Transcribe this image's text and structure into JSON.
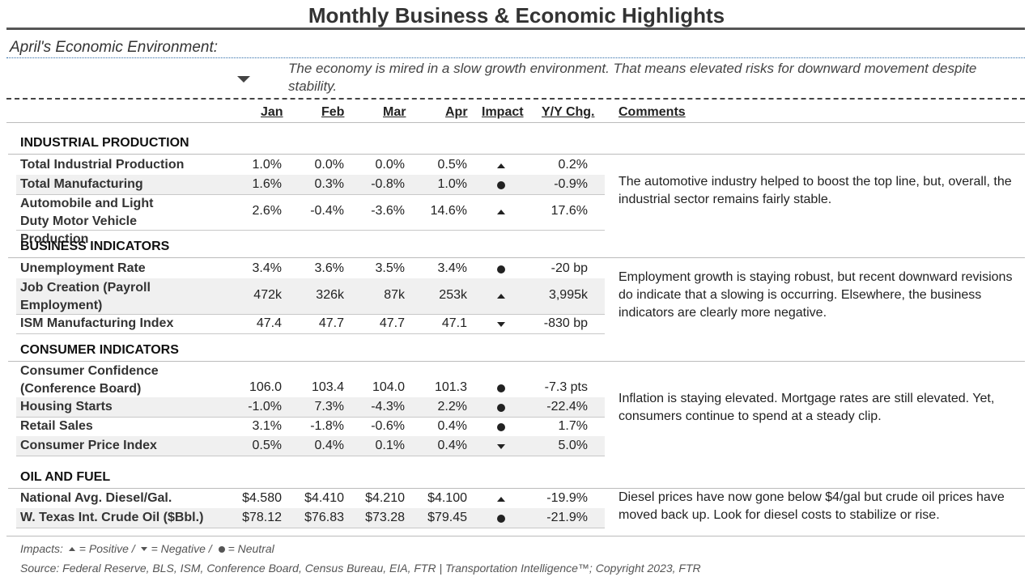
{
  "title": "Monthly Business & Economic Highlights",
  "subtitle": "April's Economic Environment:",
  "summary": {
    "icon": "down-arrow-icon",
    "text": "The economy is mired in a slow growth environment. That means elevated risks for downward movement despite stability."
  },
  "columns": {
    "jan": "Jan",
    "feb": "Feb",
    "mar": "Mar",
    "apr": "Apr",
    "impact": "Impact",
    "yy": "Y/Y Chg.",
    "comments": "Comments"
  },
  "sections": [
    {
      "title": "INDUSTRIAL PRODUCTION",
      "rows": [
        {
          "label": "Total Industrial Production",
          "jan": "1.0%",
          "feb": "0.0%",
          "mar": "0.0%",
          "apr": "0.5%",
          "impact": "up",
          "yy": "0.2%"
        },
        {
          "label": "Total Manufacturing",
          "jan": "1.6%",
          "feb": "0.3%",
          "mar": "-0.8%",
          "apr": "1.0%",
          "impact": "neutral",
          "yy": "-0.9%"
        },
        {
          "label": "Automobile and Light Duty Motor Vehicle Production",
          "jan": "2.6%",
          "feb": "-0.4%",
          "mar": "-3.6%",
          "apr": "14.6%",
          "impact": "up",
          "yy": "17.6%"
        }
      ],
      "comment": "The automotive industry helped to boost the top line, but, overall, the industrial sector remains fairly stable."
    },
    {
      "title": "BUSINESS INDICATORS",
      "rows": [
        {
          "label": "Unemployment Rate",
          "jan": "3.4%",
          "feb": "3.6%",
          "mar": "3.5%",
          "apr": "3.4%",
          "impact": "neutral",
          "yy": "-20 bp"
        },
        {
          "label": "Job Creation (Payroll Employment)",
          "jan": "472k",
          "feb": "326k",
          "mar": "87k",
          "apr": "253k",
          "impact": "up",
          "yy": "3,995k"
        },
        {
          "label": "ISM Manufacturing Index",
          "jan": "47.4",
          "feb": "47.7",
          "mar": "47.7",
          "apr": "47.1",
          "impact": "down",
          "yy": "-830 bp"
        }
      ],
      "comment": "Employment growth is staying robust, but recent downward revisions do indicate that a slowing is occurring. Elsewhere, the business indicators are clearly more negative."
    },
    {
      "title": "CONSUMER INDICATORS",
      "rows": [
        {
          "label": "Consumer Confidence (Conference Board)",
          "jan": "106.0",
          "feb": "103.4",
          "mar": "104.0",
          "apr": "101.3",
          "impact": "neutral",
          "yy": "-7.3 pts"
        },
        {
          "label": "Housing Starts",
          "jan": "-1.0%",
          "feb": "7.3%",
          "mar": "-4.3%",
          "apr": "2.2%",
          "impact": "neutral",
          "yy": "-22.4%"
        },
        {
          "label": "Retail Sales",
          "jan": "3.1%",
          "feb": "-1.8%",
          "mar": "-0.6%",
          "apr": "0.4%",
          "impact": "neutral",
          "yy": "1.7%"
        },
        {
          "label": "Consumer Price Index",
          "jan": "0.5%",
          "feb": "0.4%",
          "mar": "0.1%",
          "apr": "0.4%",
          "impact": "down",
          "yy": "5.0%"
        }
      ],
      "comment": "Inflation is staying elevated. Mortgage rates are still elevated. Yet, consumers continue to spend at a steady clip."
    },
    {
      "title": "OIL AND FUEL",
      "rows": [
        {
          "label": "National Avg. Diesel/Gal.",
          "jan": "$4.580",
          "feb": "$4.410",
          "mar": "$4.210",
          "apr": "$4.100",
          "impact": "up",
          "yy": "-19.9%"
        },
        {
          "label": "W. Texas Int. Crude Oil ($Bbl.)",
          "jan": "$78.12",
          "feb": "$76.83",
          "mar": "$73.28",
          "apr": "$79.45",
          "impact": "neutral",
          "yy": "-21.9%"
        }
      ],
      "comment": "Diesel prices have now gone below $4/gal but crude oil prices have moved back up. Look for diesel costs to stabilize or rise."
    }
  ],
  "footer": {
    "impacts_prefix": "Impacts:",
    "positive": "= Positive /",
    "negative": "= Negative /",
    "neutral": "= Neutral",
    "source": "Source: Federal Reserve, BLS, ISM, Conference Board, Census Bureau, EIA, FTR | Transportation Intelligence™; Copyright 2023, FTR"
  },
  "icons": {
    "up": "up-triangle-icon",
    "down": "down-triangle-icon",
    "neutral": "neutral-dot-icon"
  }
}
